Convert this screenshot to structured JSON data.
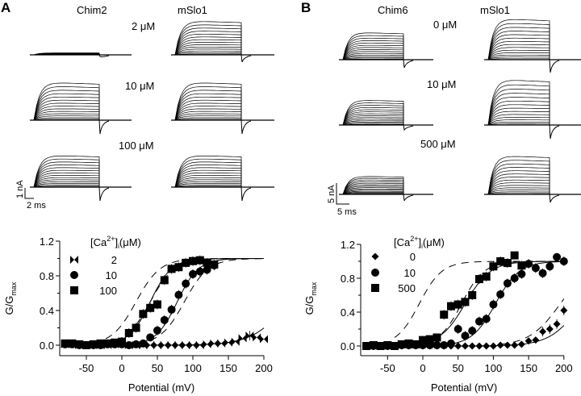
{
  "figure": {
    "panels": [
      {
        "letter": "A",
        "traces": {
          "columns": [
            "Chim2",
            "mSlo1"
          ],
          "rows": [
            {
              "conc": "2 μM",
              "levels": [
                0.05,
                0.85
              ]
            },
            {
              "conc": "10 μM",
              "levels": [
                0.95,
                0.95
              ]
            },
            {
              "conc": "100 μM",
              "levels": [
                0.95,
                0.95
              ]
            }
          ],
          "scale_bar": {
            "current": "1 nA",
            "time": "2 ms"
          }
        }
      },
      {
        "letter": "B",
        "traces": {
          "columns": [
            "Chim6",
            "mSlo1"
          ],
          "rows": [
            {
              "conc": "0 μM",
              "levels": [
                0.6,
                0.9
              ]
            },
            {
              "conc": "10 μM",
              "levels": [
                0.55,
                1.0
              ]
            },
            {
              "conc": "500 μM",
              "levels": [
                0.4,
                0.85
              ]
            }
          ],
          "scale_bar": {
            "current": "5 nA",
            "time": "5 ms"
          }
        }
      }
    ]
  },
  "chart_data": [
    {
      "type": "scatter",
      "panel": "A",
      "title": "",
      "xlabel": "Potential (mV)",
      "ylabel": "G/Gmax",
      "xlim": [
        -85,
        200
      ],
      "ylim": [
        -0.1,
        1.2
      ],
      "xticks": [
        "-50",
        "0",
        "50",
        "100",
        "150",
        "200"
      ],
      "xtick_values": [
        -50,
        0,
        50,
        100,
        150,
        200
      ],
      "yticks": [
        "0.0",
        "0.4",
        "0.8",
        "1.2"
      ],
      "ytick_values": [
        0.0,
        0.4,
        0.8,
        1.2
      ],
      "legend_title": "[Ca2+]i(μM)",
      "legend_position": "top-left",
      "series": [
        {
          "name": "2",
          "marker": "bowtie",
          "x": [
            -80,
            -70,
            -60,
            -50,
            -40,
            -30,
            -20,
            -10,
            0,
            10,
            20,
            30,
            40,
            50,
            60,
            70,
            80,
            90,
            100,
            110,
            120,
            130,
            140,
            150,
            160,
            170,
            180,
            190,
            200
          ],
          "y": [
            0.01,
            0.01,
            0.0,
            0.0,
            0.0,
            0.0,
            0.0,
            0.01,
            0.01,
            0.0,
            0.0,
            0.0,
            0.0,
            0.0,
            0.0,
            0.0,
            0.0,
            0.0,
            0.0,
            0.0,
            0.01,
            0.02,
            0.02,
            0.03,
            0.04,
            0.08,
            0.11,
            0.09,
            0.07
          ],
          "fit": {
            "v_half": 235,
            "slope": 25
          }
        },
        {
          "name": "10",
          "marker": "circle",
          "x": [
            -80,
            -70,
            -60,
            -50,
            -40,
            -30,
            -20,
            -10,
            0,
            10,
            20,
            30,
            40,
            50,
            60,
            70,
            80,
            90,
            100,
            110,
            120,
            130
          ],
          "y": [
            0.01,
            0.01,
            0.0,
            0.0,
            0.0,
            0.0,
            0.01,
            0.01,
            0.01,
            0.0,
            0.01,
            0.02,
            0.09,
            0.17,
            0.29,
            0.41,
            0.58,
            0.71,
            0.82,
            0.85,
            0.87,
            0.92
          ],
          "fit": {
            "v_half": 78,
            "slope": 15
          }
        },
        {
          "name": "100",
          "marker": "square",
          "x": [
            -80,
            -70,
            -60,
            -50,
            -40,
            -30,
            -20,
            -10,
            0,
            10,
            20,
            30,
            40,
            50,
            60,
            70,
            80,
            90,
            100,
            110,
            120,
            130
          ],
          "y": [
            0.02,
            0.02,
            0.01,
            0.0,
            0.01,
            0.02,
            0.02,
            0.03,
            0.04,
            0.14,
            0.2,
            0.36,
            0.43,
            0.47,
            0.75,
            0.88,
            0.9,
            0.95,
            0.97,
            0.98,
            0.95,
            0.93
          ],
          "fit": {
            "v_half": 40,
            "slope": 15
          }
        },
        {
          "name": "mSlo1 2 μM",
          "style": "dashed",
          "fit": {
            "v_half": 88,
            "slope": 17
          }
        },
        {
          "name": "mSlo1 10 μM",
          "style": "dashed",
          "fit": {
            "v_half": 40,
            "slope": 17
          }
        },
        {
          "name": "mSlo1 100 μM",
          "style": "dashed",
          "fit": {
            "v_half": 20,
            "slope": 17
          }
        }
      ]
    },
    {
      "type": "scatter",
      "panel": "B",
      "title": "",
      "xlabel": "Potential (mV)",
      "ylabel": "G/Gmax",
      "xlim": [
        -85,
        200
      ],
      "ylim": [
        -0.1,
        1.2
      ],
      "xticks": [
        "-50",
        "0",
        "50",
        "100",
        "150",
        "200"
      ],
      "xtick_values": [
        -50,
        0,
        50,
        100,
        150,
        200
      ],
      "yticks": [
        "0.0",
        "0.4",
        "0.8",
        "1.2"
      ],
      "ytick_values": [
        0.0,
        0.4,
        0.8,
        1.2
      ],
      "legend_title": "[Ca2+]i(μM)",
      "legend_position": "top-left",
      "series": [
        {
          "name": "0",
          "marker": "diamond",
          "x": [
            -80,
            -70,
            -60,
            -50,
            -40,
            -30,
            -20,
            -10,
            0,
            10,
            20,
            30,
            40,
            50,
            60,
            70,
            80,
            90,
            100,
            110,
            120,
            130,
            140,
            150,
            160,
            170,
            180,
            190,
            200
          ],
          "y": [
            0.0,
            0.0,
            0.0,
            0.0,
            0.0,
            0.0,
            0.0,
            0.0,
            0.0,
            0.0,
            0.0,
            0.0,
            0.0,
            0.0,
            0.0,
            0.0,
            0.0,
            0.0,
            0.0,
            0.01,
            0.01,
            0.01,
            0.02,
            0.06,
            0.07,
            0.17,
            0.2,
            0.26,
            0.42
          ],
          "fit": {
            "v_half": 225,
            "slope": 22
          }
        },
        {
          "name": "10",
          "marker": "circle",
          "x": [
            -80,
            -70,
            -60,
            -50,
            -40,
            -30,
            -20,
            -10,
            0,
            10,
            20,
            30,
            40,
            50,
            60,
            70,
            80,
            90,
            100,
            110,
            120,
            130,
            140,
            150,
            160,
            170,
            180,
            190,
            200
          ],
          "y": [
            0.0,
            0.0,
            0.0,
            0.0,
            0.0,
            0.01,
            0.01,
            0.01,
            0.01,
            0.01,
            0.01,
            0.01,
            0.03,
            0.2,
            0.12,
            0.18,
            0.29,
            0.32,
            0.49,
            0.61,
            0.74,
            0.8,
            0.85,
            0.97,
            0.92,
            0.86,
            0.94,
            1.05,
            1.0
          ],
          "fit": {
            "v_half": 103,
            "slope": 17
          }
        },
        {
          "name": "500",
          "marker": "square",
          "x": [
            -80,
            -70,
            -60,
            -50,
            -40,
            -30,
            -20,
            -10,
            0,
            10,
            20,
            30,
            40,
            50,
            60,
            70,
            80,
            90,
            100,
            110,
            120,
            130,
            140
          ],
          "y": [
            0.0,
            0.01,
            0.0,
            0.01,
            0.0,
            0.02,
            0.03,
            0.02,
            0.07,
            0.08,
            0.1,
            0.37,
            0.47,
            0.49,
            0.52,
            0.6,
            0.79,
            0.82,
            0.94,
            1.0,
            0.98,
            1.07,
            0.95
          ],
          "fit": {
            "v_half": 60,
            "slope": 18
          }
        },
        {
          "name": "mSlo1 0 μM",
          "style": "dashed",
          "fit": {
            "v_half": 195,
            "slope": 22
          }
        },
        {
          "name": "mSlo1 10 μM",
          "style": "dashed",
          "fit": {
            "v_half": 55,
            "slope": 16
          }
        },
        {
          "name": "mSlo1 500 μM",
          "style": "dashed",
          "fit": {
            "v_half": -5,
            "slope": 16
          }
        }
      ]
    }
  ],
  "labels": {
    "A": "A",
    "B": "B",
    "A_col1": "Chim2",
    "A_col2": "mSlo1",
    "A_conc1": "2 μM",
    "A_conc2": "10 μM",
    "A_conc3": "100 μM",
    "A_scale_i": "1 nA",
    "A_scale_t": "2 ms",
    "B_col1": "Chim6",
    "B_col2": "mSlo1",
    "B_conc1": "0 μM",
    "B_conc2": "10 μM",
    "B_conc3": "500 μM",
    "B_scale_i": "5 nA",
    "B_scale_t": "5 ms",
    "xlabel": "Potential (mV)",
    "ylabel_main": "G/G",
    "ylabel_sub": "max",
    "legend_ca": "[Ca",
    "legend_sup": "2+",
    "legend_rest": "]",
    "legend_i": "i",
    "legend_unit": "(μM)",
    "A_leg1": "2",
    "A_leg2": "10",
    "A_leg3": "100",
    "B_leg1": "0",
    "B_leg2": "10",
    "B_leg3": "500"
  }
}
